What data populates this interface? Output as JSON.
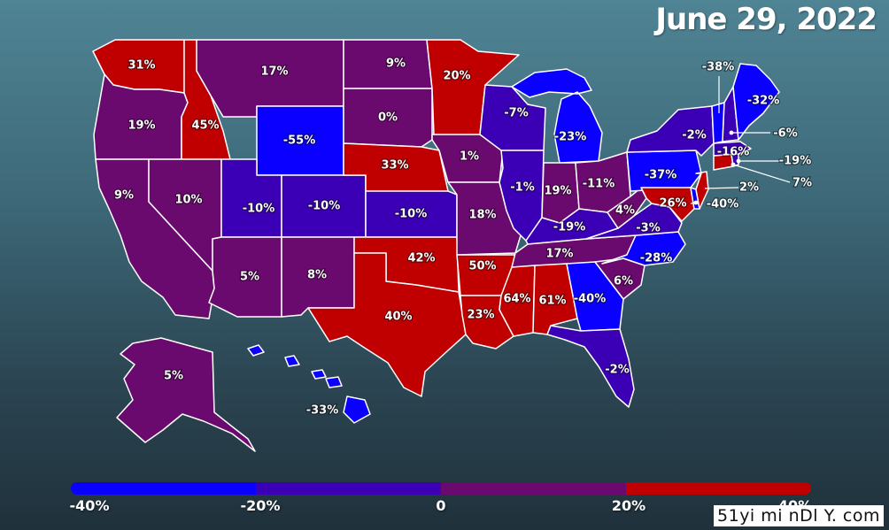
{
  "title": "June 29, 2022",
  "colors": {
    "blue": "#0a00ff",
    "blue_violet": "#3b00b5",
    "purple": "#6a0a6e",
    "red": "#c00000"
  },
  "legend": {
    "ticks": [
      "-40%",
      "-20%",
      "0",
      "20%",
      "40%"
    ],
    "segments": [
      "#0a00ff",
      "#3b00b5",
      "#6a0a6e",
      "#c00000"
    ]
  },
  "watermark": "51yi mi nDl Y. com",
  "states": [
    {
      "code": "WA",
      "value": "31%"
    },
    {
      "code": "OR",
      "value": "19%"
    },
    {
      "code": "CA",
      "value": "9%"
    },
    {
      "code": "ID",
      "value": "45%"
    },
    {
      "code": "NV",
      "value": "10%"
    },
    {
      "code": "MT",
      "value": "17%"
    },
    {
      "code": "WY",
      "value": "-55%"
    },
    {
      "code": "UT",
      "value": "-10%"
    },
    {
      "code": "AZ",
      "value": "5%"
    },
    {
      "code": "CO",
      "value": "-10%"
    },
    {
      "code": "NM",
      "value": "8%"
    },
    {
      "code": "ND",
      "value": "9%"
    },
    {
      "code": "SD",
      "value": "0%"
    },
    {
      "code": "NE",
      "value": "33%"
    },
    {
      "code": "KS",
      "value": "-10%"
    },
    {
      "code": "OK",
      "value": "42%"
    },
    {
      "code": "TX",
      "value": "40%"
    },
    {
      "code": "MN",
      "value": "20%"
    },
    {
      "code": "IA",
      "value": "1%"
    },
    {
      "code": "MO",
      "value": "18%"
    },
    {
      "code": "AR",
      "value": "50%"
    },
    {
      "code": "LA",
      "value": "23%"
    },
    {
      "code": "WI",
      "value": "-7%"
    },
    {
      "code": "IL",
      "value": "-1%"
    },
    {
      "code": "MI",
      "value": "-23%"
    },
    {
      "code": "IN",
      "value": "19%"
    },
    {
      "code": "OH",
      "value": "-11%"
    },
    {
      "code": "KY",
      "value": "-19%"
    },
    {
      "code": "TN",
      "value": "17%"
    },
    {
      "code": "MS",
      "value": "64%"
    },
    {
      "code": "AL",
      "value": "61%"
    },
    {
      "code": "GA",
      "value": "-40%"
    },
    {
      "code": "FL",
      "value": "-2%"
    },
    {
      "code": "SC",
      "value": "6%"
    },
    {
      "code": "NC",
      "value": "-28%"
    },
    {
      "code": "VA",
      "value": "-3%"
    },
    {
      "code": "WV",
      "value": "4%"
    },
    {
      "code": "PA",
      "value": "-37%"
    },
    {
      "code": "NY",
      "value": "-2%"
    },
    {
      "code": "MD",
      "value": "26%"
    },
    {
      "code": "DE",
      "value": "-40%"
    },
    {
      "code": "NJ",
      "value": "2%"
    },
    {
      "code": "CT",
      "value": "7%"
    },
    {
      "code": "RI",
      "value": "-19%"
    },
    {
      "code": "MA",
      "value": "-6%"
    },
    {
      "code": "NH",
      "value": "-16%"
    },
    {
      "code": "VT",
      "value": "-38%"
    },
    {
      "code": "ME",
      "value": "-32%"
    },
    {
      "code": "AK",
      "value": "5%"
    },
    {
      "code": "HI",
      "value": "-33%"
    }
  ]
}
